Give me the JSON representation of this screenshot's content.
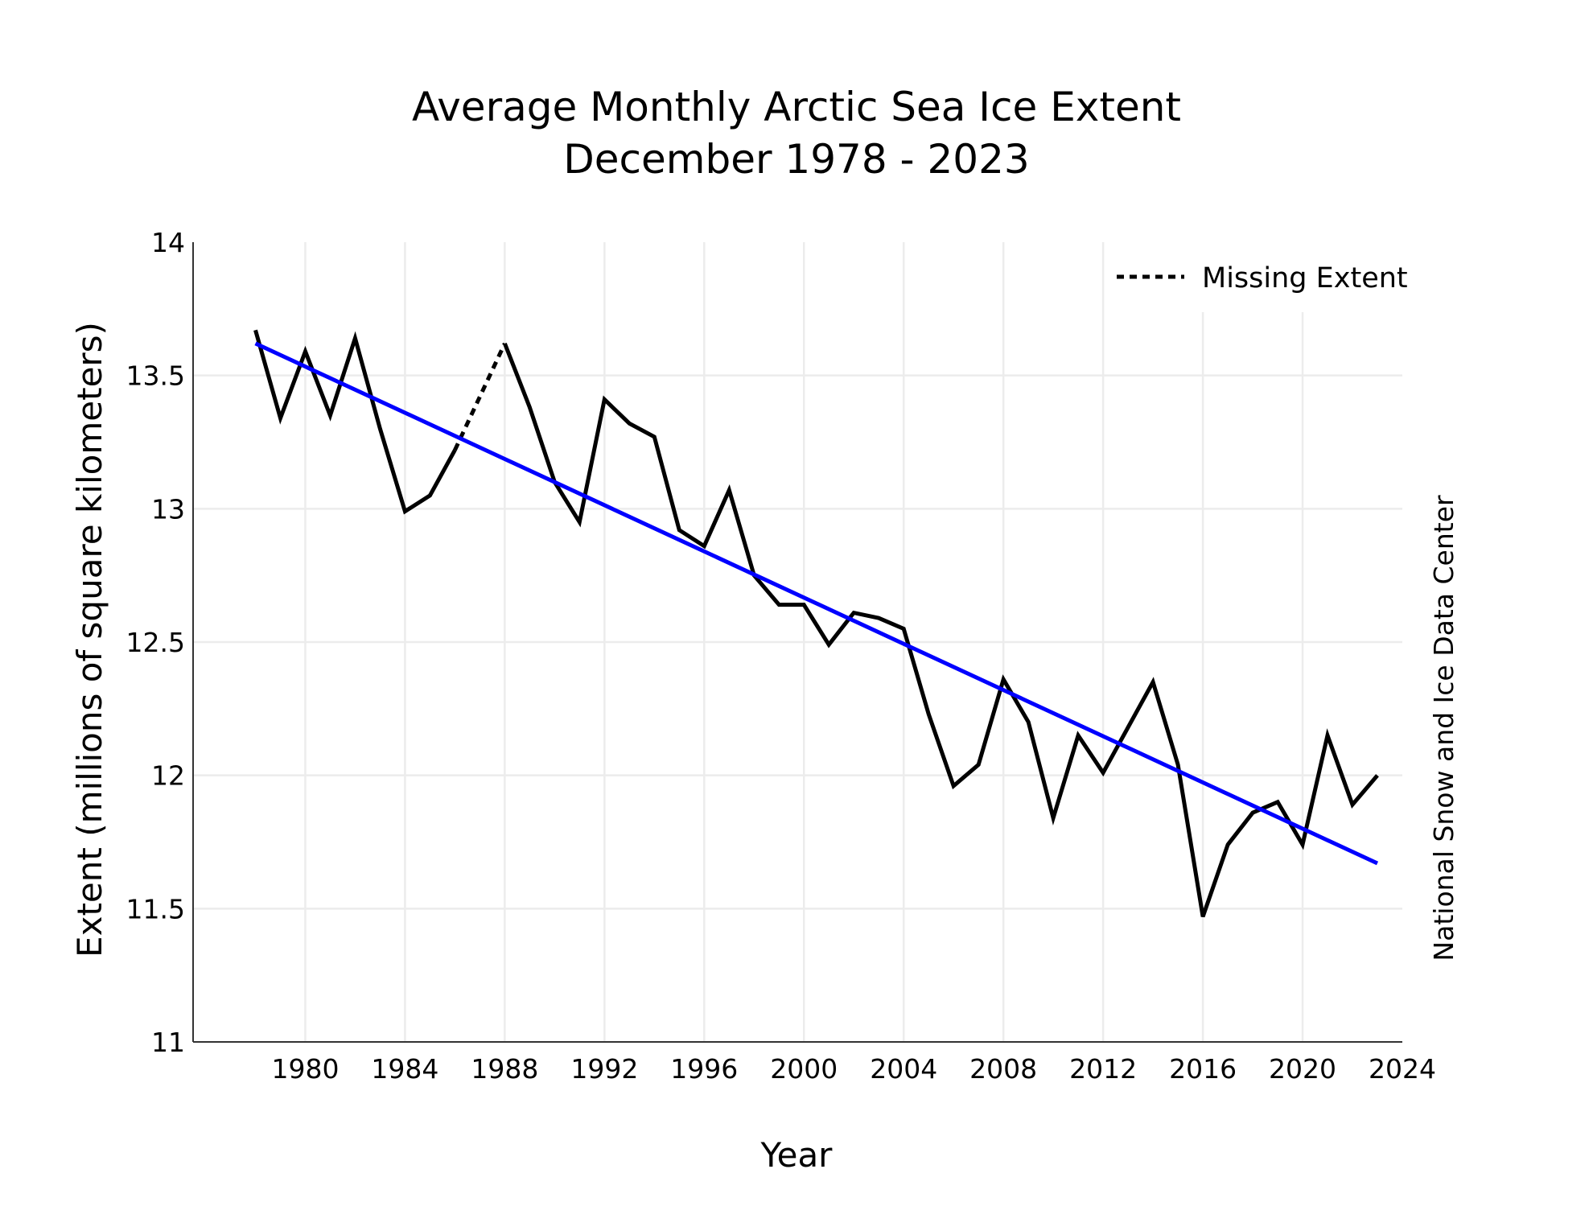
{
  "chart_data": {
    "type": "line",
    "title": "Average Monthly Arctic Sea Ice Extent",
    "subtitle": "December 1978 - 2023",
    "xlabel": "Year",
    "ylabel": "Extent (millions of square kilometers)",
    "credit": "National Snow and Ice Data Center",
    "xlim": [
      1975.5,
      2024
    ],
    "ylim": [
      11,
      14
    ],
    "x_ticks": [
      1980,
      1984,
      1988,
      1992,
      1996,
      2000,
      2004,
      2008,
      2012,
      2016,
      2020,
      2024
    ],
    "y_ticks": [
      11,
      11.5,
      12,
      12.5,
      13,
      13.5,
      14
    ],
    "y_tick_labels": [
      "11",
      "11.5",
      "12",
      "12.5",
      "13",
      "13.5",
      "14"
    ],
    "grid": true,
    "legend": {
      "placement": "top-right",
      "entries": [
        {
          "label": "Missing Extent",
          "style": "dotted",
          "color": "#000000"
        }
      ]
    },
    "series": [
      {
        "style": "solid",
        "color": "#000000",
        "x": [
          1978,
          1979,
          1980,
          1981,
          1982,
          1983,
          1984,
          1985,
          1986
        ],
        "y": [
          13.67,
          13.34,
          13.59,
          13.35,
          13.64,
          13.3,
          12.99,
          13.05,
          13.22
        ]
      },
      {
        "name": "Missing Extent",
        "style": "dotted",
        "color": "#000000",
        "x": [
          1986,
          1988
        ],
        "y": [
          13.22,
          13.62
        ]
      },
      {
        "style": "solid",
        "color": "#000000",
        "x": [
          1988,
          1989,
          1990,
          1991,
          1992,
          1993,
          1994,
          1995,
          1996,
          1997,
          1998,
          1999,
          2000,
          2001,
          2002,
          2003,
          2004,
          2005,
          2006,
          2007,
          2008,
          2009,
          2010,
          2011,
          2012,
          2013,
          2014,
          2015,
          2016,
          2017,
          2018,
          2019,
          2020,
          2021,
          2022,
          2023
        ],
        "y": [
          13.62,
          13.38,
          13.1,
          12.95,
          13.41,
          13.32,
          13.27,
          12.92,
          12.86,
          13.07,
          12.75,
          12.64,
          12.64,
          12.49,
          12.61,
          12.59,
          12.55,
          12.23,
          11.96,
          12.04,
          12.36,
          12.2,
          11.84,
          12.15,
          12.01,
          12.18,
          12.35,
          12.04,
          11.47,
          11.74,
          11.86,
          11.9,
          11.74,
          12.15,
          11.89,
          12.0
        ]
      },
      {
        "style": "solid",
        "color": "#0000ff",
        "x": [
          1978,
          2023
        ],
        "y": [
          13.62,
          11.67
        ]
      }
    ]
  }
}
